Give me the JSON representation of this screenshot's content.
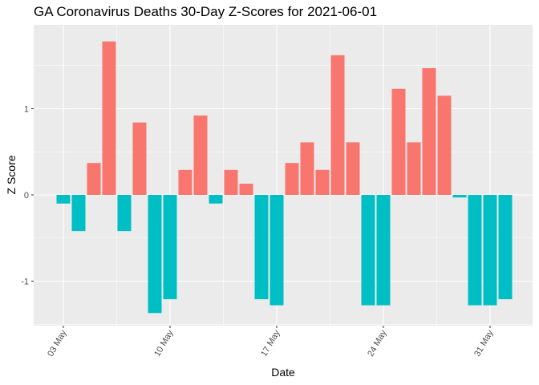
{
  "chart_data": {
    "type": "bar",
    "title": "GA Coronavirus Deaths 30-Day Z-Scores for 2021-06-01",
    "xlabel": "Date",
    "ylabel": "Z Score",
    "ylim": [
      -1.5,
      1.9
    ],
    "y_ticks": [
      {
        "value": -1,
        "label": "-1"
      },
      {
        "value": 0,
        "label": "0"
      },
      {
        "value": 1,
        "label": "1"
      }
    ],
    "x_ticks": [
      {
        "index": 0,
        "label": "03 May"
      },
      {
        "index": 7,
        "label": "10 May"
      },
      {
        "index": 14,
        "label": "17 May"
      },
      {
        "index": 21,
        "label": "24 May"
      },
      {
        "index": 28,
        "label": "31 May"
      }
    ],
    "positive_color": "#F8766D",
    "negative_color": "#00BFC4",
    "panel_color": "#EBEBEB",
    "grid_color": "#FFFFFF",
    "categories": [
      "2021-05-03",
      "2021-05-04",
      "2021-05-05",
      "2021-05-06",
      "2021-05-07",
      "2021-05-08",
      "2021-05-09",
      "2021-05-10",
      "2021-05-11",
      "2021-05-12",
      "2021-05-13",
      "2021-05-14",
      "2021-05-15",
      "2021-05-16",
      "2021-05-17",
      "2021-05-18",
      "2021-05-19",
      "2021-05-20",
      "2021-05-21",
      "2021-05-22",
      "2021-05-23",
      "2021-05-24",
      "2021-05-25",
      "2021-05-26",
      "2021-05-27",
      "2021-05-28",
      "2021-05-29",
      "2021-05-30",
      "2021-05-31",
      "2021-06-01"
    ],
    "values": [
      -0.1,
      -0.42,
      0.37,
      1.78,
      -0.42,
      0.84,
      -1.37,
      -1.21,
      0.29,
      0.92,
      -0.1,
      0.29,
      0.13,
      -1.21,
      -1.28,
      0.37,
      0.61,
      0.29,
      1.62,
      0.61,
      -1.28,
      -1.28,
      1.23,
      0.61,
      1.47,
      1.15,
      -0.03,
      -1.28,
      -1.28,
      -1.21
    ]
  }
}
